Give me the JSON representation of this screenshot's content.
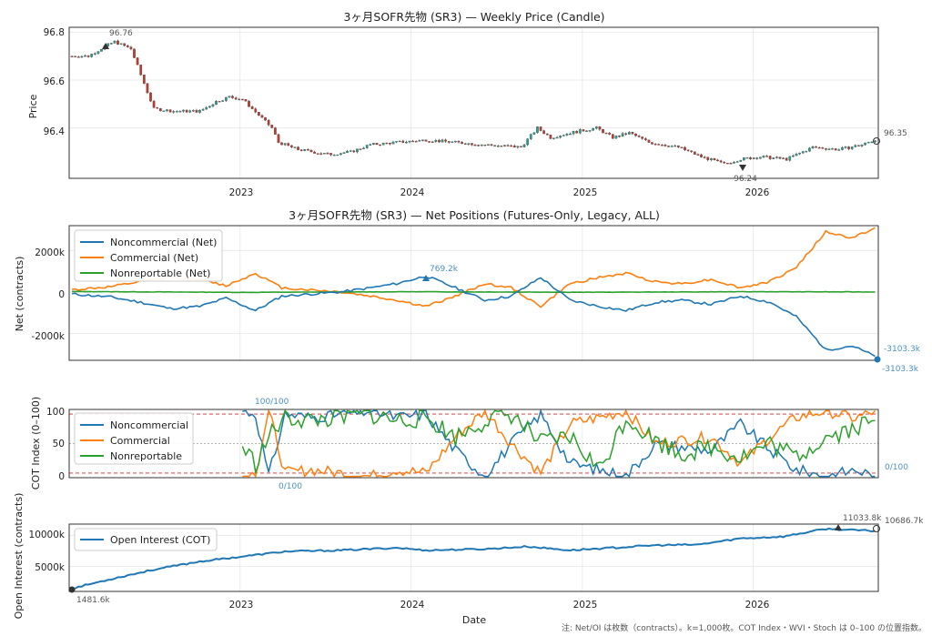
{
  "x_year_ticks": [
    "2023",
    "2024",
    "2025",
    "2026"
  ],
  "x_label": "Date",
  "footnote": "注: Net/OI は枚数（contracts）。k=1,000枚。COT Index・WVI・Stoch は 0–100 の位置指数。",
  "colors": {
    "noncommercial": "#1f77b4",
    "commercial": "#ff7f0e",
    "nonreportable": "#2ca02c",
    "candle_up": "#2a9d8f",
    "candle_down": "#c0392b",
    "threshold": "#d62728"
  },
  "chart_data": [
    {
      "type": "candlestick",
      "title": "3ヶ月SOFR先物 (SR3) — Weekly Price (Candle)",
      "ylabel": "Price",
      "ylim": [
        96.19,
        96.82
      ],
      "yticks": [
        "96.8",
        "96.6",
        "96.4"
      ],
      "annotations": {
        "max": "96.76",
        "min": "96.24",
        "last": "96.35"
      },
      "close_points": [
        [
          "2022-01-07",
          96.7
        ],
        [
          "2022-02-11",
          96.7
        ],
        [
          "2022-03-18",
          96.74
        ],
        [
          "2022-04-08",
          96.76
        ],
        [
          "2022-05-13",
          96.73
        ],
        [
          "2022-06-17",
          96.55
        ],
        [
          "2022-07-01",
          96.48
        ],
        [
          "2022-08-12",
          96.47
        ],
        [
          "2022-10-07",
          96.47
        ],
        [
          "2022-11-11",
          96.51
        ],
        [
          "2022-12-09",
          96.53
        ],
        [
          "2023-01-06",
          96.52
        ],
        [
          "2023-03-10",
          96.4
        ],
        [
          "2023-03-24",
          96.34
        ],
        [
          "2023-05-05",
          96.31
        ],
        [
          "2023-07-07",
          96.29
        ],
        [
          "2023-08-25",
          96.3
        ],
        [
          "2023-10-06",
          96.33
        ],
        [
          "2023-12-01",
          96.34
        ],
        [
          "2024-02-02",
          96.35
        ],
        [
          "2024-04-05",
          96.34
        ],
        [
          "2024-06-07",
          96.33
        ],
        [
          "2024-08-23",
          96.32
        ],
        [
          "2024-09-27",
          96.4
        ],
        [
          "2024-10-25",
          96.36
        ],
        [
          "2024-12-06",
          96.38
        ],
        [
          "2025-01-31",
          96.4
        ],
        [
          "2025-03-07",
          96.36
        ],
        [
          "2025-04-11",
          96.38
        ],
        [
          "2025-05-23",
          96.34
        ],
        [
          "2025-07-25",
          96.32
        ],
        [
          "2025-09-12",
          96.28
        ],
        [
          "2025-10-31",
          96.25
        ],
        [
          "2025-12-05",
          96.27
        ],
        [
          "2026-01-16",
          96.28
        ],
        [
          "2026-03-13",
          96.27
        ],
        [
          "2026-05-08",
          96.32
        ],
        [
          "2026-07-03",
          96.31
        ],
        [
          "2026-08-21",
          96.33
        ],
        [
          "2026-09-18",
          96.35
        ]
      ]
    },
    {
      "type": "line",
      "title": "3ヶ月SOFR先物 (SR3) — Net Positions (Futures-Only, Legacy, ALL)",
      "ylabel": "Net (contracts)",
      "ylim": [
        -3300,
        3200
      ],
      "yticks": [
        "2000k",
        "0",
        "-2000k"
      ],
      "legend": "top-left",
      "annotations": {
        "max": "769.2k",
        "last": "-3103.3k",
        "min": "-3103.3k"
      },
      "series": [
        {
          "name": "Noncommercial (Net)",
          "values": [
            [
              "2022-01-07",
              -100
            ],
            [
              "2022-04-01",
              -250
            ],
            [
              "2022-06-03",
              -500
            ],
            [
              "2022-08-05",
              -800
            ],
            [
              "2022-10-07",
              -700
            ],
            [
              "2022-12-02",
              -300
            ],
            [
              "2023-02-03",
              -900
            ],
            [
              "2023-03-31",
              -200
            ],
            [
              "2023-06-02",
              -100
            ],
            [
              "2023-08-04",
              0
            ],
            [
              "2023-10-06",
              200
            ],
            [
              "2023-12-01",
              400
            ],
            [
              "2024-02-02",
              769
            ],
            [
              "2024-04-05",
              200
            ],
            [
              "2024-06-07",
              -400
            ],
            [
              "2024-08-02",
              -200
            ],
            [
              "2024-10-04",
              700
            ],
            [
              "2024-12-06",
              -400
            ],
            [
              "2025-02-07",
              -700
            ],
            [
              "2025-04-04",
              -900
            ],
            [
              "2025-06-06",
              -500
            ],
            [
              "2025-08-01",
              -400
            ],
            [
              "2025-10-03",
              -600
            ],
            [
              "2025-12-05",
              -200
            ],
            [
              "2026-02-06",
              -500
            ],
            [
              "2026-04-03",
              -1200
            ],
            [
              "2026-06-05",
              -2800
            ],
            [
              "2026-07-31",
              -2600
            ],
            [
              "2026-09-18",
              -3103
            ]
          ]
        },
        {
          "name": "Commercial (Net)",
          "values": [
            [
              "2022-01-07",
              100
            ],
            [
              "2022-04-01",
              250
            ],
            [
              "2022-06-03",
              500
            ],
            [
              "2022-08-05",
              700
            ],
            [
              "2022-10-07",
              600
            ],
            [
              "2022-12-02",
              300
            ],
            [
              "2023-02-03",
              900
            ],
            [
              "2023-03-31",
              200
            ],
            [
              "2023-06-02",
              100
            ],
            [
              "2023-08-04",
              0
            ],
            [
              "2023-10-06",
              -200
            ],
            [
              "2023-12-01",
              -400
            ],
            [
              "2024-02-02",
              -700
            ],
            [
              "2024-04-05",
              -200
            ],
            [
              "2024-06-07",
              400
            ],
            [
              "2024-08-02",
              200
            ],
            [
              "2024-10-04",
              -700
            ],
            [
              "2024-12-06",
              400
            ],
            [
              "2025-02-07",
              700
            ],
            [
              "2025-04-04",
              900
            ],
            [
              "2025-06-06",
              500
            ],
            [
              "2025-08-01",
              400
            ],
            [
              "2025-10-03",
              600
            ],
            [
              "2025-12-05",
              200
            ],
            [
              "2026-02-06",
              500
            ],
            [
              "2026-04-03",
              1200
            ],
            [
              "2026-06-05",
              2900
            ],
            [
              "2026-07-31",
              2600
            ],
            [
              "2026-09-18",
              3100
            ]
          ]
        },
        {
          "name": "Nonreportable (Net)",
          "values": [
            [
              "2022-01-07",
              20
            ],
            [
              "2023-01-06",
              -20
            ],
            [
              "2024-01-05",
              10
            ],
            [
              "2025-01-03",
              -15
            ],
            [
              "2026-01-02",
              10
            ],
            [
              "2026-09-18",
              0
            ]
          ]
        }
      ]
    },
    {
      "type": "line",
      "ylabel": "COT Index (0–100)",
      "ylim": [
        -2,
        102
      ],
      "yticks": [
        "100",
        "50",
        "0"
      ],
      "thresholds": [
        95,
        5
      ],
      "legend": "top-left",
      "annotations": {
        "max": "100/100",
        "min": "0/100",
        "last": "0/100"
      },
      "series": [
        {
          "name": "Noncommercial",
          "values": [
            [
              "2023-01-06",
              100
            ],
            [
              "2023-02-03",
              95
            ],
            [
              "2023-03-03",
              0
            ],
            [
              "2023-04-07",
              95
            ],
            [
              "2023-06-02",
              90
            ],
            [
              "2023-08-04",
              95
            ],
            [
              "2023-10-06",
              100
            ],
            [
              "2023-12-01",
              90
            ],
            [
              "2024-02-02",
              95
            ],
            [
              "2024-04-05",
              40
            ],
            [
              "2024-06-07",
              0
            ],
            [
              "2024-08-02",
              50
            ],
            [
              "2024-10-04",
              95
            ],
            [
              "2024-12-06",
              20
            ],
            [
              "2025-02-07",
              10
            ],
            [
              "2025-04-04",
              0
            ],
            [
              "2025-06-06",
              50
            ],
            [
              "2025-08-01",
              45
            ],
            [
              "2025-10-03",
              40
            ],
            [
              "2025-12-05",
              80
            ],
            [
              "2026-02-06",
              40
            ],
            [
              "2026-04-03",
              10
            ],
            [
              "2026-06-05",
              0
            ],
            [
              "2026-08-07",
              10
            ],
            [
              "2026-09-18",
              0
            ]
          ]
        },
        {
          "name": "Commercial",
          "values": [
            [
              "2023-01-06",
              0
            ],
            [
              "2023-02-03",
              5
            ],
            [
              "2023-03-03",
              100
            ],
            [
              "2023-04-07",
              5
            ],
            [
              "2023-06-02",
              10
            ],
            [
              "2023-08-04",
              5
            ],
            [
              "2023-10-06",
              0
            ],
            [
              "2023-12-01",
              10
            ],
            [
              "2024-02-02",
              5
            ],
            [
              "2024-04-05",
              60
            ],
            [
              "2024-06-07",
              100
            ],
            [
              "2024-08-02",
              50
            ],
            [
              "2024-10-04",
              5
            ],
            [
              "2024-12-06",
              80
            ],
            [
              "2025-02-07",
              90
            ],
            [
              "2025-04-04",
              100
            ],
            [
              "2025-06-06",
              50
            ],
            [
              "2025-08-01",
              55
            ],
            [
              "2025-10-03",
              60
            ],
            [
              "2025-12-05",
              20
            ],
            [
              "2026-02-06",
              60
            ],
            [
              "2026-04-03",
              90
            ],
            [
              "2026-06-05",
              100
            ],
            [
              "2026-08-07",
              88
            ],
            [
              "2026-09-18",
              100
            ]
          ]
        },
        {
          "name": "Nonreportable",
          "values": [
            [
              "2023-01-06",
              45
            ],
            [
              "2023-02-03",
              20
            ],
            [
              "2023-03-03",
              60
            ],
            [
              "2023-04-07",
              90
            ],
            [
              "2023-06-02",
              85
            ],
            [
              "2023-08-04",
              90
            ],
            [
              "2023-10-06",
              95
            ],
            [
              "2023-12-01",
              85
            ],
            [
              "2024-02-02",
              90
            ],
            [
              "2024-04-05",
              60
            ],
            [
              "2024-06-07",
              85
            ],
            [
              "2024-08-02",
              95
            ],
            [
              "2024-10-04",
              50
            ],
            [
              "2024-12-06",
              60
            ],
            [
              "2025-02-07",
              10
            ],
            [
              "2025-04-04",
              90
            ],
            [
              "2025-06-06",
              55
            ],
            [
              "2025-08-01",
              35
            ],
            [
              "2025-10-03",
              45
            ],
            [
              "2025-12-05",
              30
            ],
            [
              "2026-02-06",
              50
            ],
            [
              "2026-04-03",
              30
            ],
            [
              "2026-06-05",
              60
            ],
            [
              "2026-08-07",
              75
            ],
            [
              "2026-09-18",
              85
            ]
          ]
        }
      ]
    },
    {
      "type": "line",
      "ylabel": "Open Interest (contracts)",
      "ylim": [
        1000,
        11800
      ],
      "yticks": [
        "10000k",
        "5000k"
      ],
      "legend": "top-left",
      "annotations": {
        "max": "11033.8k",
        "last": "10686.7k",
        "min": "1481.6k"
      },
      "series": [
        {
          "name": "Open Interest (COT)",
          "values": [
            [
              "2022-01-07",
              1481
            ],
            [
              "2022-04-01",
              3000
            ],
            [
              "2022-07-01",
              4500
            ],
            [
              "2022-10-07",
              5800
            ],
            [
              "2023-01-06",
              6600
            ],
            [
              "2023-04-07",
              7400
            ],
            [
              "2023-08-04",
              7600
            ],
            [
              "2023-12-01",
              8000
            ],
            [
              "2024-02-02",
              7600
            ],
            [
              "2024-06-07",
              7800
            ],
            [
              "2024-09-06",
              8200
            ],
            [
              "2024-12-06",
              7600
            ],
            [
              "2025-03-07",
              8000
            ],
            [
              "2025-06-06",
              8400
            ],
            [
              "2025-09-05",
              8500
            ],
            [
              "2025-12-05",
              9500
            ],
            [
              "2026-03-06",
              9800
            ],
            [
              "2026-06-05",
              11034
            ],
            [
              "2026-09-18",
              10687
            ]
          ]
        }
      ]
    }
  ]
}
